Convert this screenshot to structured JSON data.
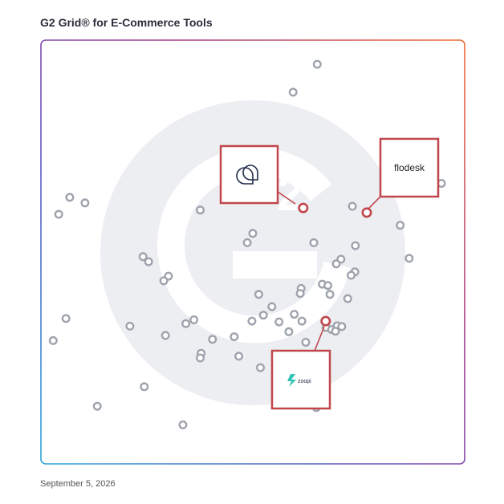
{
  "chart_data": {
    "type": "scatter",
    "title": "G2 Grid® for E-Commerce Tools",
    "xlabel": "",
    "ylabel": "",
    "xlim": [
      0,
      100
    ],
    "ylim": [
      0,
      100
    ],
    "grid": "quadrants",
    "points": [
      {
        "x": 65.2,
        "y": 94.3
      },
      {
        "x": 59.5,
        "y": 87.7
      },
      {
        "x": 94.5,
        "y": 66.2
      },
      {
        "x": 6.8,
        "y": 62.9
      },
      {
        "x": 10.4,
        "y": 61.6
      },
      {
        "x": 4.2,
        "y": 58.9
      },
      {
        "x": 37.6,
        "y": 59.9
      },
      {
        "x": 73.5,
        "y": 60.8
      },
      {
        "x": 84.8,
        "y": 56.3
      },
      {
        "x": 50.0,
        "y": 54.4
      },
      {
        "x": 48.7,
        "y": 52.2
      },
      {
        "x": 64.4,
        "y": 52.2
      },
      {
        "x": 74.2,
        "y": 51.5
      },
      {
        "x": 24.1,
        "y": 48.9
      },
      {
        "x": 25.4,
        "y": 47.7
      },
      {
        "x": 86.9,
        "y": 48.5
      },
      {
        "x": 70.8,
        "y": 48.3
      },
      {
        "x": 69.7,
        "y": 47.2
      },
      {
        "x": 74.1,
        "y": 45.3
      },
      {
        "x": 73.2,
        "y": 44.5
      },
      {
        "x": 30.1,
        "y": 44.3
      },
      {
        "x": 29.0,
        "y": 43.2
      },
      {
        "x": 66.4,
        "y": 42.4
      },
      {
        "x": 67.7,
        "y": 42.1
      },
      {
        "x": 61.4,
        "y": 41.4
      },
      {
        "x": 68.2,
        "y": 40.0
      },
      {
        "x": 61.2,
        "y": 40.2
      },
      {
        "x": 51.4,
        "y": 40.0
      },
      {
        "x": 72.4,
        "y": 39.0
      },
      {
        "x": 54.5,
        "y": 37.1
      },
      {
        "x": 52.5,
        "y": 35.1
      },
      {
        "x": 59.8,
        "y": 35.3
      },
      {
        "x": 5.9,
        "y": 34.3
      },
      {
        "x": 36.1,
        "y": 34.0
      },
      {
        "x": 49.8,
        "y": 33.7
      },
      {
        "x": 56.2,
        "y": 33.5
      },
      {
        "x": 61.6,
        "y": 33.7
      },
      {
        "x": 67.3,
        "y": 32.2
      },
      {
        "x": 68.6,
        "y": 31.7
      },
      {
        "x": 69.9,
        "y": 32.6
      },
      {
        "x": 69.5,
        "y": 31.3
      },
      {
        "x": 71.0,
        "y": 32.4
      },
      {
        "x": 21.0,
        "y": 32.5
      },
      {
        "x": 34.2,
        "y": 33.1
      },
      {
        "x": 58.5,
        "y": 31.2
      },
      {
        "x": 2.9,
        "y": 29.1
      },
      {
        "x": 29.4,
        "y": 30.3
      },
      {
        "x": 40.5,
        "y": 29.4
      },
      {
        "x": 45.6,
        "y": 30.0
      },
      {
        "x": 62.5,
        "y": 28.7
      },
      {
        "x": 37.8,
        "y": 26.1
      },
      {
        "x": 37.6,
        "y": 25.0
      },
      {
        "x": 46.7,
        "y": 25.4
      },
      {
        "x": 51.8,
        "y": 22.7
      },
      {
        "x": 24.4,
        "y": 18.2
      },
      {
        "x": 13.3,
        "y": 13.6
      },
      {
        "x": 65.0,
        "y": 13.3
      },
      {
        "x": 33.5,
        "y": 9.2
      }
    ],
    "highlighted": [
      {
        "x": 61.9,
        "y": 60.4,
        "label": ""
      },
      {
        "x": 76.9,
        "y": 59.3,
        "label": "flodesk"
      },
      {
        "x": 67.2,
        "y": 33.7,
        "label": "zoopi"
      }
    ]
  },
  "labels": {
    "date": "September 5, 2026"
  }
}
